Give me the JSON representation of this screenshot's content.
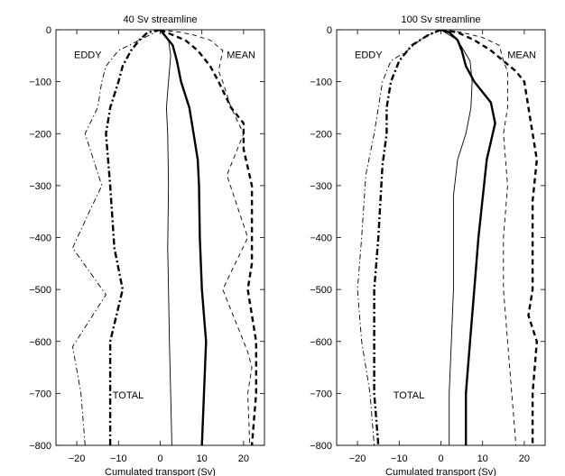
{
  "chart_data": [
    {
      "type": "line",
      "title": "40 Sv streamline",
      "xlabel": "Cumulated transport (Sv)",
      "ylabel": "",
      "xlim": [
        -25,
        25
      ],
      "ylim": [
        -800,
        0
      ],
      "xticks": [
        -20,
        -10,
        0,
        10,
        20
      ],
      "yticks": [
        0,
        -100,
        -200,
        -300,
        -400,
        -500,
        -600,
        -700,
        -800
      ],
      "annotations": [
        "EDDY",
        "MEAN",
        "TOTAL"
      ],
      "series": [
        {
          "style": "thin-solid",
          "points": [
            [
              0,
              0
            ],
            [
              2,
              -20
            ],
            [
              2.5,
              -50
            ],
            [
              2,
              -100
            ],
            [
              1.5,
              -150
            ],
            [
              1.8,
              -200
            ],
            [
              2,
              -300
            ],
            [
              1.8,
              -420
            ],
            [
              2,
              -500
            ],
            [
              2.2,
              -600
            ],
            [
              2.5,
              -700
            ],
            [
              2.8,
              -800
            ]
          ]
        },
        {
          "style": "thick-solid",
          "points": [
            [
              0,
              0
            ],
            [
              3,
              -30
            ],
            [
              4,
              -60
            ],
            [
              5,
              -100
            ],
            [
              7,
              -150
            ],
            [
              8,
              -200
            ],
            [
              9,
              -250
            ],
            [
              9.3,
              -300
            ],
            [
              9.5,
              -400
            ],
            [
              10,
              -500
            ],
            [
              11,
              -600
            ],
            [
              10.5,
              -700
            ],
            [
              10,
              -800
            ]
          ]
        },
        {
          "style": "thin-dashed",
          "points": [
            [
              0,
              0
            ],
            [
              5,
              -5
            ],
            [
              8,
              -10
            ],
            [
              12,
              -20
            ],
            [
              15,
              -40
            ],
            [
              14,
              -80
            ],
            [
              15,
              -100
            ],
            [
              17,
              -150
            ],
            [
              20,
              -200
            ],
            [
              16,
              -280
            ],
            [
              21,
              -400
            ],
            [
              15,
              -500
            ],
            [
              21,
              -620
            ],
            [
              22,
              -650
            ],
            [
              21,
              -700
            ],
            [
              21.5,
              -800
            ]
          ]
        },
        {
          "style": "thick-dashed",
          "points": [
            [
              0,
              0
            ],
            [
              3,
              -10
            ],
            [
              6,
              -20
            ],
            [
              9,
              -40
            ],
            [
              12,
              -70
            ],
            [
              14,
              -100
            ],
            [
              17,
              -150
            ],
            [
              20,
              -180
            ],
            [
              20,
              -230
            ],
            [
              22,
              -300
            ],
            [
              22,
              -400
            ],
            [
              22,
              -450
            ],
            [
              21,
              -500
            ],
            [
              23,
              -600
            ],
            [
              23,
              -700
            ],
            [
              22,
              -800
            ]
          ]
        },
        {
          "style": "thin-dashdot",
          "points": [
            [
              0,
              0
            ],
            [
              -5,
              -20
            ],
            [
              -10,
              -40
            ],
            [
              -13,
              -70
            ],
            [
              -14,
              -100
            ],
            [
              -15,
              -150
            ],
            [
              -18,
              -200
            ],
            [
              -14,
              -300
            ],
            [
              -17,
              -350
            ],
            [
              -21,
              -420
            ],
            [
              -13,
              -510
            ],
            [
              -21,
              -610
            ],
            [
              -19,
              -700
            ],
            [
              -18,
              -800
            ]
          ]
        },
        {
          "style": "thick-dashdot",
          "points": [
            [
              0,
              0
            ],
            [
              -3,
              -5
            ],
            [
              -5,
              -20
            ],
            [
              -7,
              -40
            ],
            [
              -9,
              -70
            ],
            [
              -10,
              -100
            ],
            [
              -12,
              -150
            ],
            [
              -13,
              -200
            ],
            [
              -12,
              -300
            ],
            [
              -11,
              -420
            ],
            [
              -9,
              -500
            ],
            [
              -12,
              -600
            ],
            [
              -12,
              -700
            ],
            [
              -12,
              -800
            ]
          ]
        }
      ]
    },
    {
      "type": "line",
      "title": "100 Sv streamline",
      "xlabel": "Cumulated transport (Sv)",
      "ylabel": "",
      "xlim": [
        -25,
        25
      ],
      "ylim": [
        -800,
        0
      ],
      "xticks": [
        -20,
        -10,
        0,
        10,
        20
      ],
      "yticks": [
        0,
        -100,
        -200,
        -300,
        -400,
        -500,
        -600,
        -700,
        -800
      ],
      "annotations": [
        "EDDY",
        "MEAN",
        "TOTAL"
      ],
      "series": [
        {
          "style": "thin-solid",
          "points": [
            [
              0,
              0
            ],
            [
              4,
              -20
            ],
            [
              7,
              -60
            ],
            [
              7.5,
              -100
            ],
            [
              7.2,
              -150
            ],
            [
              6,
              -200
            ],
            [
              4,
              -250
            ],
            [
              3,
              -320
            ],
            [
              3,
              -400
            ],
            [
              3,
              -500
            ],
            [
              2.5,
              -600
            ],
            [
              2,
              -700
            ],
            [
              2,
              -800
            ]
          ]
        },
        {
          "style": "thick-solid",
          "points": [
            [
              0,
              0
            ],
            [
              2,
              -5
            ],
            [
              4,
              -20
            ],
            [
              5,
              -40
            ],
            [
              6,
              -70
            ],
            [
              8,
              -100
            ],
            [
              12,
              -140
            ],
            [
              13,
              -180
            ],
            [
              11,
              -250
            ],
            [
              9,
              -400
            ],
            [
              8,
              -500
            ],
            [
              7,
              -600
            ],
            [
              6,
              -700
            ],
            [
              6,
              -800
            ]
          ]
        },
        {
          "style": "thin-dashed",
          "points": [
            [
              0,
              0
            ],
            [
              5,
              -5
            ],
            [
              10,
              -15
            ],
            [
              14,
              -30
            ],
            [
              15,
              -60
            ],
            [
              16,
              -80
            ],
            [
              16,
              -150
            ],
            [
              15,
              -200
            ],
            [
              16,
              -300
            ],
            [
              15,
              -400
            ],
            [
              15,
              -500
            ],
            [
              16,
              -600
            ],
            [
              17,
              -700
            ],
            [
              18,
              -800
            ]
          ]
        },
        {
          "style": "thick-dashed",
          "points": [
            [
              0,
              0
            ],
            [
              4,
              -5
            ],
            [
              8,
              -20
            ],
            [
              12,
              -40
            ],
            [
              15,
              -60
            ],
            [
              18,
              -80
            ],
            [
              20,
              -100
            ],
            [
              21,
              -150
            ],
            [
              23,
              -250
            ],
            [
              22,
              -330
            ],
            [
              22,
              -400
            ],
            [
              22,
              -500
            ],
            [
              21,
              -550
            ],
            [
              23,
              -600
            ],
            [
              22,
              -700
            ],
            [
              22,
              -800
            ]
          ]
        },
        {
          "style": "thin-dashdot",
          "points": [
            [
              0,
              0
            ],
            [
              -3,
              -10
            ],
            [
              -5,
              -20
            ],
            [
              -8,
              -40
            ],
            [
              -12,
              -60
            ],
            [
              -13,
              -80
            ],
            [
              -14,
              -100
            ],
            [
              -15,
              -150
            ],
            [
              -16,
              -200
            ],
            [
              -18,
              -280
            ],
            [
              -19,
              -400
            ],
            [
              -20,
              -500
            ],
            [
              -19,
              -600
            ],
            [
              -17,
              -700
            ],
            [
              -16,
              -800
            ]
          ]
        },
        {
          "style": "thick-dashdot",
          "points": [
            [
              0,
              0
            ],
            [
              -3,
              -10
            ],
            [
              -7,
              -30
            ],
            [
              -10,
              -60
            ],
            [
              -12,
              -100
            ],
            [
              -13,
              -150
            ],
            [
              -13,
              -200
            ],
            [
              -14,
              -260
            ],
            [
              -15,
              -400
            ],
            [
              -16,
              -500
            ],
            [
              -16,
              -600
            ],
            [
              -16,
              -700
            ],
            [
              -15,
              -800
            ]
          ]
        }
      ]
    }
  ]
}
